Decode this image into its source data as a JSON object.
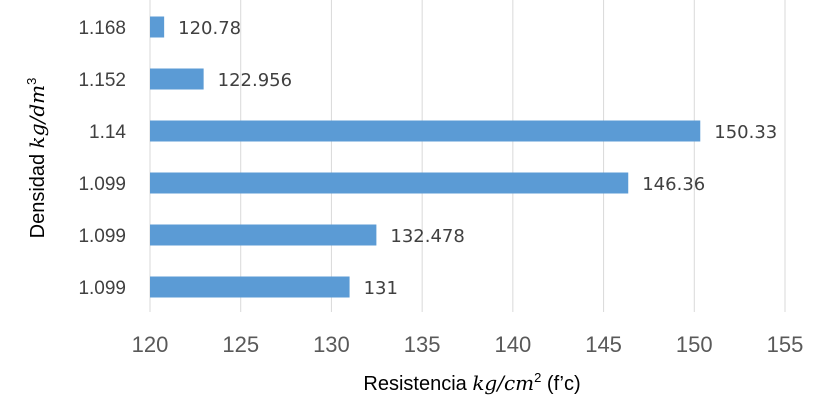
{
  "chart_data": {
    "type": "bar",
    "orientation": "horizontal",
    "categories": [
      "1.168",
      "1.152",
      "1.14",
      "1.099",
      "1.099",
      "1.099"
    ],
    "values": [
      120.78,
      122.956,
      150.33,
      146.36,
      132.478,
      131
    ],
    "data_labels": [
      "120.78",
      "122.956",
      "150.33",
      "146.36",
      "132.478",
      "131"
    ],
    "xlim": [
      120,
      155
    ],
    "xticks": [
      "120",
      "125",
      "130",
      "135",
      "140",
      "145",
      "150",
      "155"
    ],
    "xlabel": {
      "prefix": "Resistencia ",
      "math": "kg/cm",
      "sup": "2",
      "suffix": " (f’c)"
    },
    "ylabel": {
      "prefix": "Densidad ",
      "math": "kg/dm",
      "sup": "3"
    },
    "grid": true,
    "bar_color": "#5b9bd5",
    "grid_color": "#d9d9d9"
  }
}
